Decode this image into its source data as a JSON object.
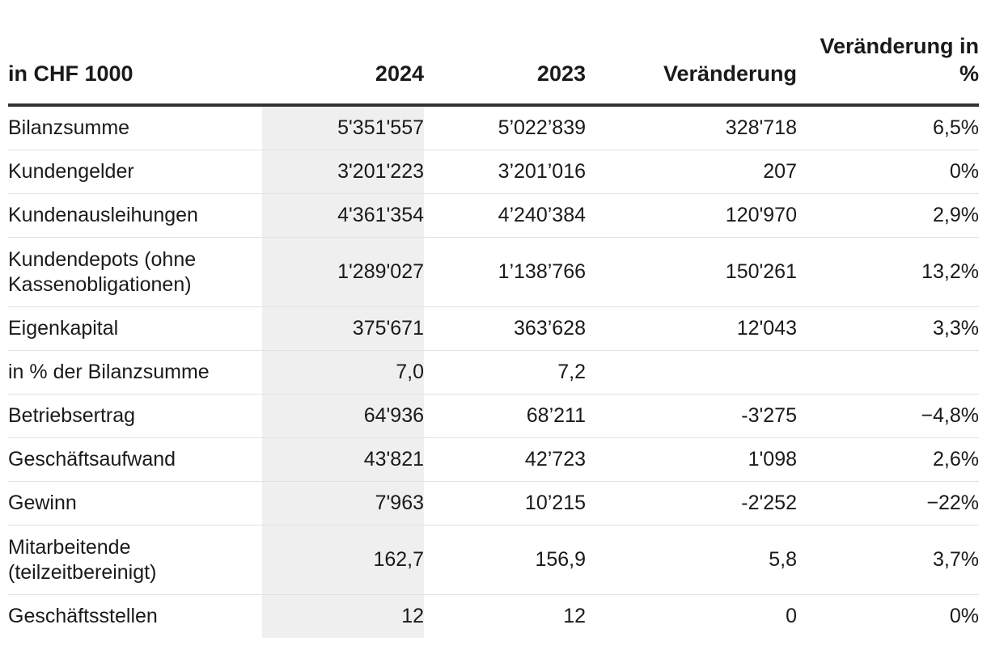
{
  "table": {
    "headers": [
      {
        "text": "in CHF 1000"
      },
      {
        "text": "2024"
      },
      {
        "text": "2023"
      },
      {
        "text": "Veränderung"
      },
      {
        "text": "Veränderung in %"
      }
    ],
    "rows": [
      {
        "label": "Bilanzsumme",
        "y2024": "5'351'557",
        "y2023": "5’022’839",
        "change": "328'718",
        "change_pct": "6,5%"
      },
      {
        "label": "Kundengelder",
        "y2024": "3'201'223",
        "y2023": "3’201’016",
        "change": "207",
        "change_pct": "0%"
      },
      {
        "label": "Kundenausleihungen",
        "y2024": "4'361'354",
        "y2023": "4’240’384",
        "change": "120'970",
        "change_pct": "2,9%"
      },
      {
        "label": "Kundendepots (ohne Kassenobligationen)",
        "y2024": "1'289'027",
        "y2023": "1’138’766",
        "change": "150'261",
        "change_pct": "13,2%"
      },
      {
        "label": "Eigenkapital",
        "y2024": "375'671",
        "y2023": "363’628",
        "change": "12'043",
        "change_pct": "3,3%"
      },
      {
        "label": "in % der Bilanzsumme",
        "y2024": "7,0",
        "y2023": "7,2",
        "change": "",
        "change_pct": ""
      },
      {
        "label": "Betriebsertrag",
        "y2024": "64'936",
        "y2023": "68’211",
        "change": "-3'275",
        "change_pct": "−4,8%"
      },
      {
        "label": "Geschäftsaufwand",
        "y2024": "43'821",
        "y2023": "42’723",
        "change": "1'098",
        "change_pct": "2,6%"
      },
      {
        "label": "Gewinn",
        "y2024": "7'963",
        "y2023": "10’215",
        "change": "-2'252",
        "change_pct": "−22%"
      },
      {
        "label": "Mitarbeitende (teilzeitbereinigt)",
        "y2024": "162,7",
        "y2023": "156,9",
        "change": "5,8",
        "change_pct": "3,7%"
      },
      {
        "label": "Geschäftsstellen",
        "y2024": "12",
        "y2023": "12",
        "change": "0",
        "change_pct": "0%"
      }
    ]
  },
  "colors": {
    "highlight_column": "#efefef",
    "header_rule": "#333333",
    "row_rule": "#e2e2e2"
  }
}
